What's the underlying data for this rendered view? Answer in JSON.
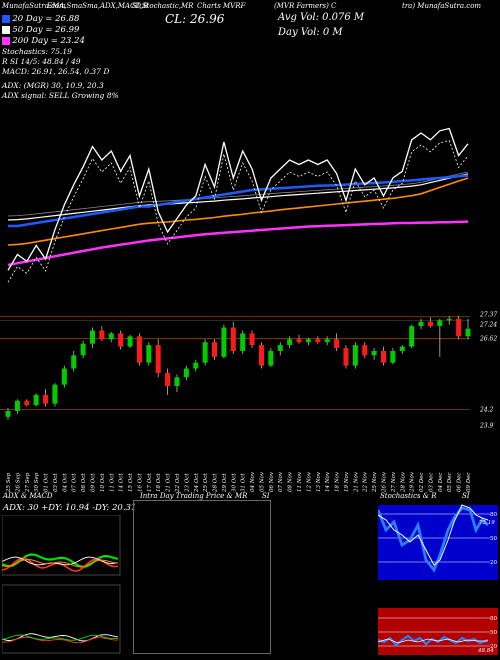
{
  "header": {
    "line1": [
      "MunafaSutra.com",
      "EMA,SmaSma,ADX,MACD,B",
      "SI,Stochastic,MR",
      "Charts MVRF",
      "(MVR Farmers) C",
      "tra) MunafaSutra.com"
    ],
    "close_label": "CL: 26.96",
    "avg_vol": "Avg Vol: 0.076   M",
    "day_vol": "Day Vol: 0   M",
    "legend": [
      {
        "label": "20  Day = 26.88",
        "color": "#1e5bff"
      },
      {
        "label": "50  Day = 26.99",
        "color": "#ffffff"
      },
      {
        "label": "200  Day = 23.24",
        "color": "#ff33ff"
      }
    ],
    "stoch_line1": "Stochastics: 75.19",
    "stoch_line2": "R              SI 14/5: 48.84  / 49",
    "macd_line": "MACD: 26.91, 26.54, 0.37 D",
    "adx_line1": "ADX:                       (MGR) 30, 10.9, 20.3",
    "adx_line2": "ADX  signal: SELL Growing  8%"
  },
  "chart_data": {
    "type": "candlestick",
    "price_labels": [
      "27.37",
      "27.24",
      "26.62",
      "24.2",
      "23.9"
    ],
    "dates": [
      "25 Sep",
      "26 Sep",
      "27 Sep",
      "30 Sep",
      "01 Oct",
      "03 Oct",
      "04 Oct",
      "07 Oct",
      "08 Oct",
      "09 Oct",
      "10 Oct",
      "11 Oct",
      "14 Oct",
      "15 Oct",
      "16 Oct",
      "17 Oct",
      "18 Oct",
      "21 Oct",
      "22 Oct",
      "23 Oct",
      "24 Oct",
      "25 Oct",
      "28 Oct",
      "29 Oct",
      "30 Oct",
      "31 Oct",
      "04 Nov",
      "05 Nov",
      "06 Nov",
      "07 Nov",
      "08 Nov",
      "11 Nov",
      "12 Nov",
      "13 Nov",
      "14 Nov",
      "18 Nov",
      "19 Nov",
      "21 Nov",
      "22 Nov",
      "25 Nov",
      "26 Nov",
      "27 Nov",
      "28 Nov",
      "29 Nov",
      "02 Dec",
      "03 Dec",
      "04 Dec",
      "05 Dec",
      "06 Dec",
      "09 Dec"
    ],
    "candles": [
      {
        "o": 23.95,
        "h": 24.25,
        "l": 23.85,
        "c": 24.15
      },
      {
        "o": 24.15,
        "h": 24.55,
        "l": 24.05,
        "c": 24.5
      },
      {
        "o": 24.5,
        "h": 24.55,
        "l": 24.3,
        "c": 24.35
      },
      {
        "o": 24.35,
        "h": 24.75,
        "l": 24.3,
        "c": 24.7
      },
      {
        "o": 24.7,
        "h": 24.9,
        "l": 24.3,
        "c": 24.4
      },
      {
        "o": 24.4,
        "h": 25.1,
        "l": 24.3,
        "c": 25.05
      },
      {
        "o": 25.05,
        "h": 25.7,
        "l": 24.95,
        "c": 25.6
      },
      {
        "o": 25.6,
        "h": 26.2,
        "l": 25.5,
        "c": 26.05
      },
      {
        "o": 26.05,
        "h": 26.55,
        "l": 25.95,
        "c": 26.45
      },
      {
        "o": 26.45,
        "h": 27.0,
        "l": 26.3,
        "c": 26.9
      },
      {
        "o": 26.9,
        "h": 27.05,
        "l": 26.55,
        "c": 26.6
      },
      {
        "o": 26.6,
        "h": 26.85,
        "l": 26.5,
        "c": 26.8
      },
      {
        "o": 26.8,
        "h": 26.9,
        "l": 26.25,
        "c": 26.35
      },
      {
        "o": 26.35,
        "h": 26.75,
        "l": 26.3,
        "c": 26.7
      },
      {
        "o": 26.7,
        "h": 26.8,
        "l": 25.7,
        "c": 25.8
      },
      {
        "o": 25.8,
        "h": 26.5,
        "l": 25.7,
        "c": 26.4
      },
      {
        "o": 26.4,
        "h": 26.6,
        "l": 25.3,
        "c": 25.45
      },
      {
        "o": 25.45,
        "h": 25.6,
        "l": 24.7,
        "c": 25.0
      },
      {
        "o": 25.0,
        "h": 25.4,
        "l": 24.8,
        "c": 25.3
      },
      {
        "o": 25.3,
        "h": 25.7,
        "l": 25.2,
        "c": 25.6
      },
      {
        "o": 25.6,
        "h": 25.9,
        "l": 25.5,
        "c": 25.8
      },
      {
        "o": 25.8,
        "h": 26.6,
        "l": 25.7,
        "c": 26.5
      },
      {
        "o": 26.5,
        "h": 26.6,
        "l": 25.9,
        "c": 26.0
      },
      {
        "o": 26.0,
        "h": 27.1,
        "l": 25.95,
        "c": 27.0
      },
      {
        "o": 27.0,
        "h": 27.2,
        "l": 26.1,
        "c": 26.2
      },
      {
        "o": 26.2,
        "h": 26.9,
        "l": 26.1,
        "c": 26.8
      },
      {
        "o": 26.8,
        "h": 26.9,
        "l": 26.3,
        "c": 26.4
      },
      {
        "o": 26.4,
        "h": 26.5,
        "l": 25.6,
        "c": 25.7
      },
      {
        "o": 25.7,
        "h": 26.3,
        "l": 25.65,
        "c": 26.2
      },
      {
        "o": 26.2,
        "h": 26.5,
        "l": 26.05,
        "c": 26.4
      },
      {
        "o": 26.4,
        "h": 26.7,
        "l": 26.3,
        "c": 26.6
      },
      {
        "o": 26.6,
        "h": 26.75,
        "l": 26.45,
        "c": 26.5
      },
      {
        "o": 26.5,
        "h": 26.65,
        "l": 26.4,
        "c": 26.6
      },
      {
        "o": 26.6,
        "h": 26.7,
        "l": 26.45,
        "c": 26.5
      },
      {
        "o": 26.5,
        "h": 26.7,
        "l": 26.4,
        "c": 26.6
      },
      {
        "o": 26.6,
        "h": 26.8,
        "l": 26.2,
        "c": 26.3
      },
      {
        "o": 26.3,
        "h": 26.4,
        "l": 25.6,
        "c": 25.7
      },
      {
        "o": 25.7,
        "h": 26.5,
        "l": 25.6,
        "c": 26.4
      },
      {
        "o": 26.4,
        "h": 26.5,
        "l": 25.95,
        "c": 26.05
      },
      {
        "o": 26.05,
        "h": 26.3,
        "l": 25.9,
        "c": 26.2
      },
      {
        "o": 26.2,
        "h": 26.35,
        "l": 25.7,
        "c": 25.8
      },
      {
        "o": 25.8,
        "h": 26.3,
        "l": 25.75,
        "c": 26.2
      },
      {
        "o": 26.2,
        "h": 26.4,
        "l": 26.1,
        "c": 26.35
      },
      {
        "o": 26.35,
        "h": 27.1,
        "l": 26.3,
        "c": 27.05
      },
      {
        "o": 27.05,
        "h": 27.3,
        "l": 26.95,
        "c": 27.2
      },
      {
        "o": 27.2,
        "h": 27.35,
        "l": 27.0,
        "c": 27.05
      },
      {
        "o": 27.05,
        "h": 27.3,
        "l": 26.0,
        "c": 27.25
      },
      {
        "o": 27.25,
        "h": 27.4,
        "l": 27.1,
        "c": 27.3
      },
      {
        "o": 27.3,
        "h": 27.4,
        "l": 26.6,
        "c": 26.7
      },
      {
        "o": 26.7,
        "h": 27.3,
        "l": 26.6,
        "c": 26.96
      }
    ],
    "price_range": [
      23.5,
      27.6
    ],
    "ma20": [
      25.2,
      25.2,
      25.25,
      25.3,
      25.35,
      25.4,
      25.45,
      25.5,
      25.55,
      25.6,
      25.65,
      25.7,
      25.75,
      25.8,
      25.85,
      25.85,
      25.9,
      25.95,
      26.0,
      26.05,
      26.1,
      26.15,
      26.2,
      26.25,
      26.3,
      26.35,
      26.4,
      26.42,
      26.44,
      26.46,
      26.48,
      26.5,
      26.52,
      26.54,
      26.55,
      26.56,
      26.58,
      26.6,
      26.62,
      26.63,
      26.65,
      26.67,
      26.7,
      26.72,
      26.75,
      26.78,
      26.8,
      26.83,
      26.86,
      26.88
    ],
    "ma50": [
      24.9,
      24.92,
      24.95,
      25.0,
      25.05,
      25.1,
      25.15,
      25.2,
      25.25,
      25.3,
      25.35,
      25.4,
      25.45,
      25.5,
      25.55,
      25.58,
      25.6,
      25.62,
      25.65,
      25.68,
      25.7,
      25.73,
      25.76,
      25.8,
      25.83,
      25.86,
      25.9,
      25.93,
      25.96,
      26.0,
      26.03,
      26.06,
      26.09,
      26.12,
      26.15,
      26.18,
      26.21,
      26.24,
      26.27,
      26.3,
      26.33,
      26.36,
      26.4,
      26.44,
      26.5,
      26.6,
      26.7,
      26.8,
      26.9,
      26.99
    ],
    "ma200": [
      22.0,
      22.05,
      22.1,
      22.15,
      22.2,
      22.25,
      22.3,
      22.35,
      22.4,
      22.45,
      22.5,
      22.54,
      22.58,
      22.62,
      22.66,
      22.7,
      22.73,
      22.76,
      22.79,
      22.82,
      22.85,
      22.88,
      22.9,
      22.92,
      22.94,
      22.96,
      22.98,
      23.0,
      23.02,
      23.04,
      23.06,
      23.08,
      23.1,
      23.11,
      23.12,
      23.13,
      23.14,
      23.15,
      23.16,
      23.17,
      23.18,
      23.19,
      23.2,
      23.2,
      23.21,
      23.21,
      23.22,
      23.22,
      23.23,
      23.24
    ]
  },
  "panels": {
    "adx_title": "ADX  & MACD",
    "adx_values": "ADX: 30  +DY: 10.94  -DY: 20.31",
    "intraday_title": "Intra  Day Trading Price  & MR",
    "intraday_si": "SI",
    "stoch_title": "Stochastics & R",
    "stoch_si": "SI",
    "stoch_levels": [
      "80",
      "50",
      "20"
    ],
    "stoch_value": "75.19",
    "rsi_levels": [
      "80",
      "50",
      "20"
    ],
    "rsi_value": "48.84"
  },
  "colors": {
    "ma20": "#1e5bff",
    "ma50": "#ffffff",
    "ma200": "#ff33ff",
    "orange": "#ff8c00",
    "up": "#00cc00",
    "down": "#ff1a1a",
    "stoch_bg": "#0000cc",
    "rsi_bg": "#b00000"
  }
}
